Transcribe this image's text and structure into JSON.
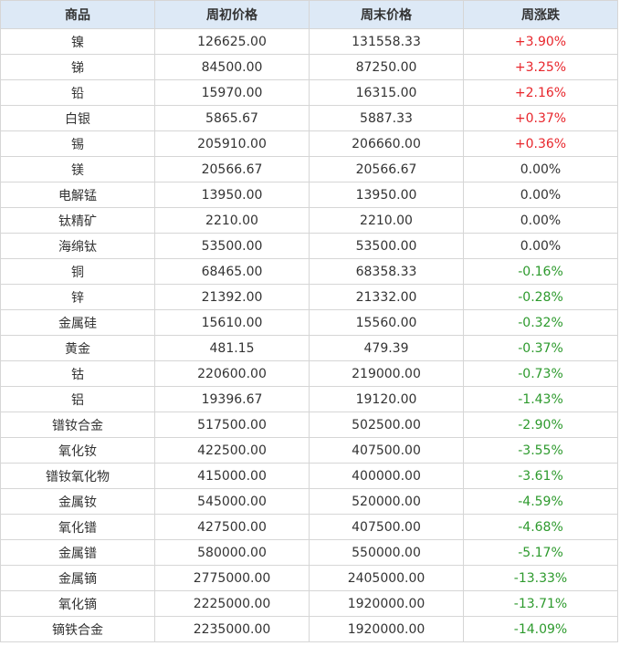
{
  "table": {
    "header": [
      "商品",
      "周初价格",
      "周末价格",
      "周涨跌"
    ],
    "rows": [
      [
        "镍",
        "126625.00",
        "131558.33",
        "+3.90%"
      ],
      [
        "锑",
        "84500.00",
        "87250.00",
        "+3.25%"
      ],
      [
        "铅",
        "15970.00",
        "16315.00",
        "+2.16%"
      ],
      [
        "白银",
        "5865.67",
        "5887.33",
        "+0.37%"
      ],
      [
        "锡",
        "205910.00",
        "206660.00",
        "+0.36%"
      ],
      [
        "镁",
        "20566.67",
        "20566.67",
        "0.00%"
      ],
      [
        "电解锰",
        "13950.00",
        "13950.00",
        "0.00%"
      ],
      [
        "钛精矿",
        "2210.00",
        "2210.00",
        "0.00%"
      ],
      [
        "海绵钛",
        "53500.00",
        "53500.00",
        "0.00%"
      ],
      [
        "铜",
        "68465.00",
        "68358.33",
        "-0.16%"
      ],
      [
        "锌",
        "21392.00",
        "21332.00",
        "-0.28%"
      ],
      [
        "金属硅",
        "15610.00",
        "15560.00",
        "-0.32%"
      ],
      [
        "黄金",
        "481.15",
        "479.39",
        "-0.37%"
      ],
      [
        "钴",
        "220600.00",
        "219000.00",
        "-0.73%"
      ],
      [
        "铝",
        "19396.67",
        "19120.00",
        "-1.43%"
      ],
      [
        "镨钕合金",
        "517500.00",
        "502500.00",
        "-2.90%"
      ],
      [
        "氧化钕",
        "422500.00",
        "407500.00",
        "-3.55%"
      ],
      [
        "镨钕氧化物",
        "415000.00",
        "400000.00",
        "-3.61%"
      ],
      [
        "金属钕",
        "545000.00",
        "520000.00",
        "-4.59%"
      ],
      [
        "氧化镨",
        "427500.00",
        "407500.00",
        "-4.68%"
      ],
      [
        "金属镨",
        "580000.00",
        "550000.00",
        "-5.17%"
      ],
      [
        "金属镝",
        "2775000.00",
        "2405000.00",
        "-13.33%"
      ],
      [
        "氧化镝",
        "2225000.00",
        "1920000.00",
        "-13.71%"
      ],
      [
        "镝铁合金",
        "2235000.00",
        "1920000.00",
        "-14.09%"
      ]
    ]
  }
}
